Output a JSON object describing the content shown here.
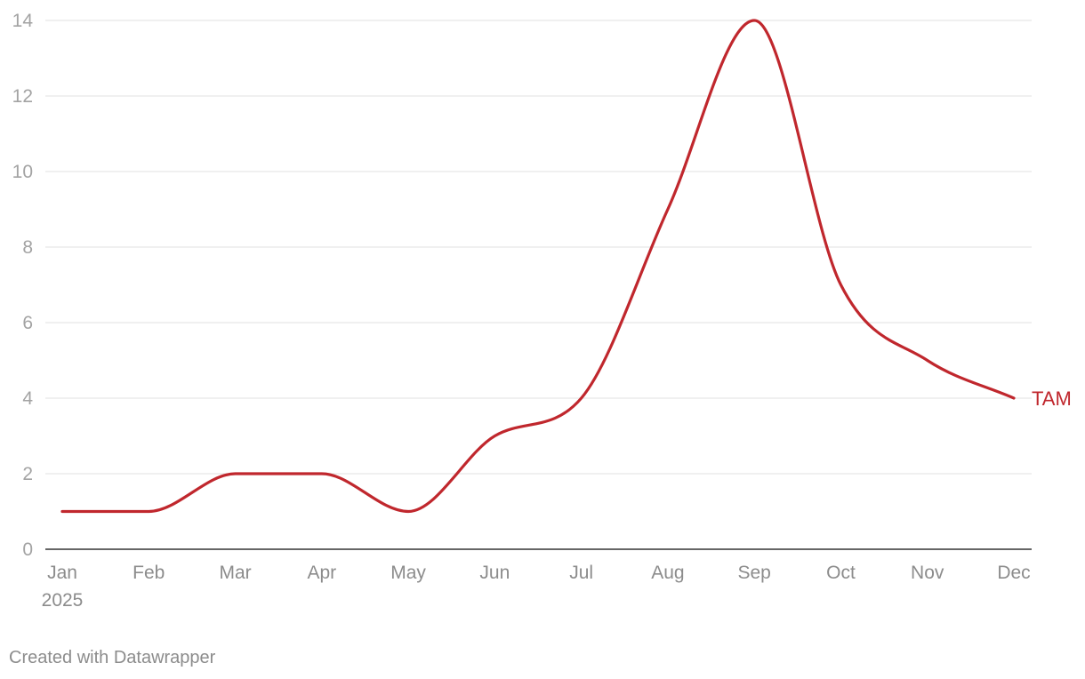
{
  "chart_data": {
    "type": "line",
    "x": [
      "Jan",
      "Feb",
      "Mar",
      "Apr",
      "May",
      "Jun",
      "Jul",
      "Aug",
      "Sep",
      "Oct",
      "Nov",
      "Dec"
    ],
    "x_year_label": "2025",
    "series": [
      {
        "name": "TAM",
        "color": "#c0272d",
        "values": [
          1,
          1,
          2,
          2,
          1,
          3,
          4,
          9,
          14,
          7,
          5,
          4
        ]
      }
    ],
    "ylim": [
      0,
      14
    ],
    "yticks": [
      0,
      2,
      4,
      6,
      8,
      10,
      12,
      14
    ],
    "grid": true,
    "curve": "smooth",
    "title": "",
    "xlabel": "",
    "ylabel": ""
  },
  "footer": {
    "credit": "Created with Datawrapper"
  }
}
